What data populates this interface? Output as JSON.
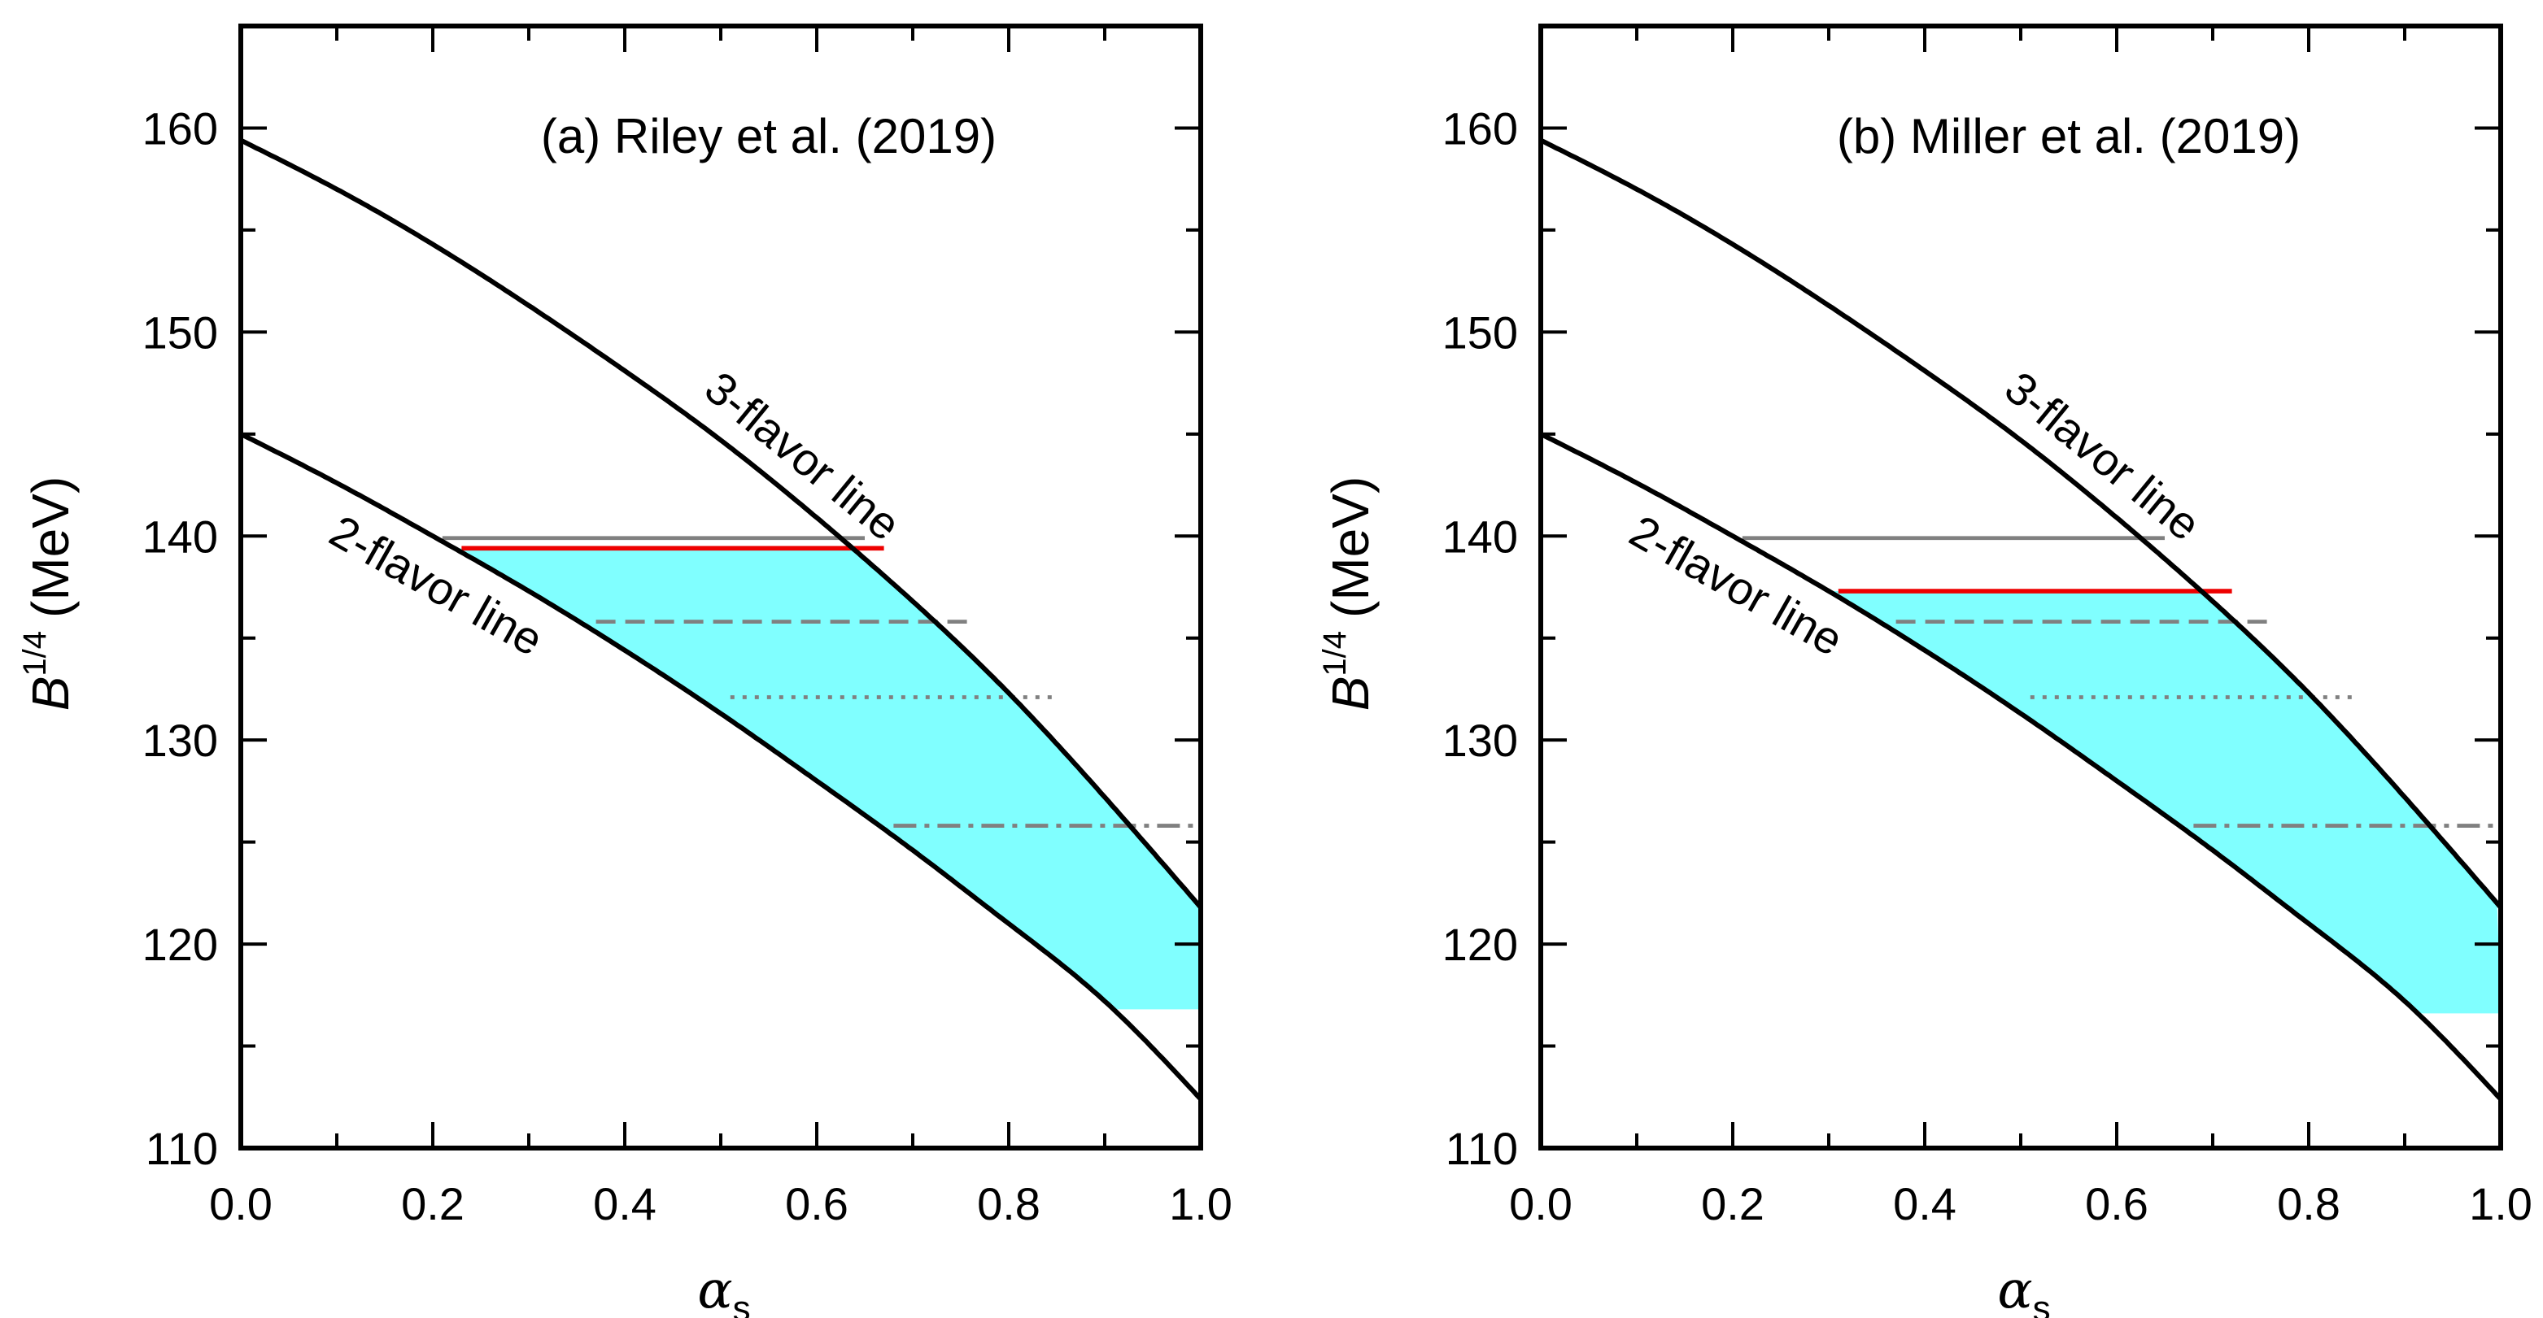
{
  "colors": {
    "frame": "#000000",
    "flavor_line": "#000000",
    "region_fill": "#80ffff",
    "red_line": "#ee0000",
    "grey_line": "#808080"
  },
  "chart_data": [
    {
      "type": "line",
      "panel": "a",
      "title": "(a) Riley et al. (2019)",
      "xlabel": {
        "symbol": "α",
        "subscript": "s"
      },
      "ylabel": {
        "symbol": "B",
        "superscript": "1/4",
        "unit": "(MeV)"
      },
      "xlim": [
        0.0,
        1.0
      ],
      "ylim": [
        110,
        165
      ],
      "x_ticks": [
        "0.0",
        "0.2",
        "0.4",
        "0.6",
        "0.8",
        "1.0"
      ],
      "y_ticks": [
        "110",
        "120",
        "130",
        "140",
        "150",
        "160"
      ],
      "annotations": {
        "three_flavor": "3-flavor line",
        "two_flavor": "2-flavor line"
      },
      "three_flavor_line": {
        "x": [
          0.0,
          0.1,
          0.2,
          0.3,
          0.4,
          0.5,
          0.6,
          0.7,
          0.8,
          0.9,
          1.0
        ],
        "y": [
          159.4,
          157.0,
          154.3,
          151.3,
          148.1,
          144.7,
          140.9,
          136.8,
          132.3,
          127.2,
          121.8
        ]
      },
      "two_flavor_line": {
        "x": [
          0.0,
          0.1,
          0.2,
          0.3,
          0.4,
          0.5,
          0.6,
          0.7,
          0.8,
          0.9,
          1.0
        ],
        "y": [
          145.0,
          142.6,
          140.0,
          137.3,
          134.4,
          131.3,
          128.0,
          124.6,
          121.0,
          117.2,
          112.4
        ]
      },
      "allowed_region": {
        "y_top": 139.4,
        "y_bottom": 116.8
      },
      "reference_lines": [
        {
          "style": "solid-grey",
          "y": 139.9,
          "x_range": [
            0.21,
            0.65
          ]
        },
        {
          "style": "solid-red",
          "y": 139.4,
          "x_range": [
            0.23,
            0.67
          ]
        },
        {
          "style": "dashed-grey",
          "y": 135.8,
          "x_range": [
            0.37,
            0.76
          ]
        },
        {
          "style": "dotted-grey",
          "y": 132.1,
          "x_range": [
            0.51,
            0.85
          ]
        },
        {
          "style": "dashdot-grey",
          "y": 125.8,
          "x_range": [
            0.68,
            1.0
          ]
        }
      ]
    },
    {
      "type": "line",
      "panel": "b",
      "title": "(b) Miller et al. (2019)",
      "xlabel": {
        "symbol": "α",
        "subscript": "s"
      },
      "ylabel": {
        "symbol": "B",
        "superscript": "1/4",
        "unit": "(MeV)"
      },
      "xlim": [
        0.0,
        1.0
      ],
      "ylim": [
        110,
        165
      ],
      "x_ticks": [
        "0.0",
        "0.2",
        "0.4",
        "0.6",
        "0.8",
        "1.0"
      ],
      "y_ticks": [
        "110",
        "120",
        "130",
        "140",
        "150",
        "160"
      ],
      "annotations": {
        "three_flavor": "3-flavor line",
        "two_flavor": "2-flavor line"
      },
      "three_flavor_line": {
        "x": [
          0.0,
          0.1,
          0.2,
          0.3,
          0.4,
          0.5,
          0.6,
          0.7,
          0.8,
          0.9,
          1.0
        ],
        "y": [
          159.4,
          157.0,
          154.3,
          151.3,
          148.1,
          144.7,
          140.9,
          136.8,
          132.3,
          127.2,
          121.8
        ]
      },
      "two_flavor_line": {
        "x": [
          0.0,
          0.1,
          0.2,
          0.3,
          0.4,
          0.5,
          0.6,
          0.7,
          0.8,
          0.9,
          1.0
        ],
        "y": [
          145.0,
          142.6,
          140.0,
          137.3,
          134.4,
          131.3,
          128.0,
          124.6,
          121.0,
          117.2,
          112.4
        ]
      },
      "allowed_region": {
        "y_top": 137.3,
        "y_bottom": 116.6
      },
      "reference_lines": [
        {
          "style": "solid-grey",
          "y": 139.9,
          "x_range": [
            0.21,
            0.65
          ]
        },
        {
          "style": "solid-red",
          "y": 137.3,
          "x_range": [
            0.31,
            0.72
          ]
        },
        {
          "style": "dashed-grey",
          "y": 135.8,
          "x_range": [
            0.37,
            0.76
          ]
        },
        {
          "style": "dotted-grey",
          "y": 132.1,
          "x_range": [
            0.51,
            0.85
          ]
        },
        {
          "style": "dashdot-grey",
          "y": 125.8,
          "x_range": [
            0.68,
            1.0
          ]
        }
      ]
    }
  ]
}
